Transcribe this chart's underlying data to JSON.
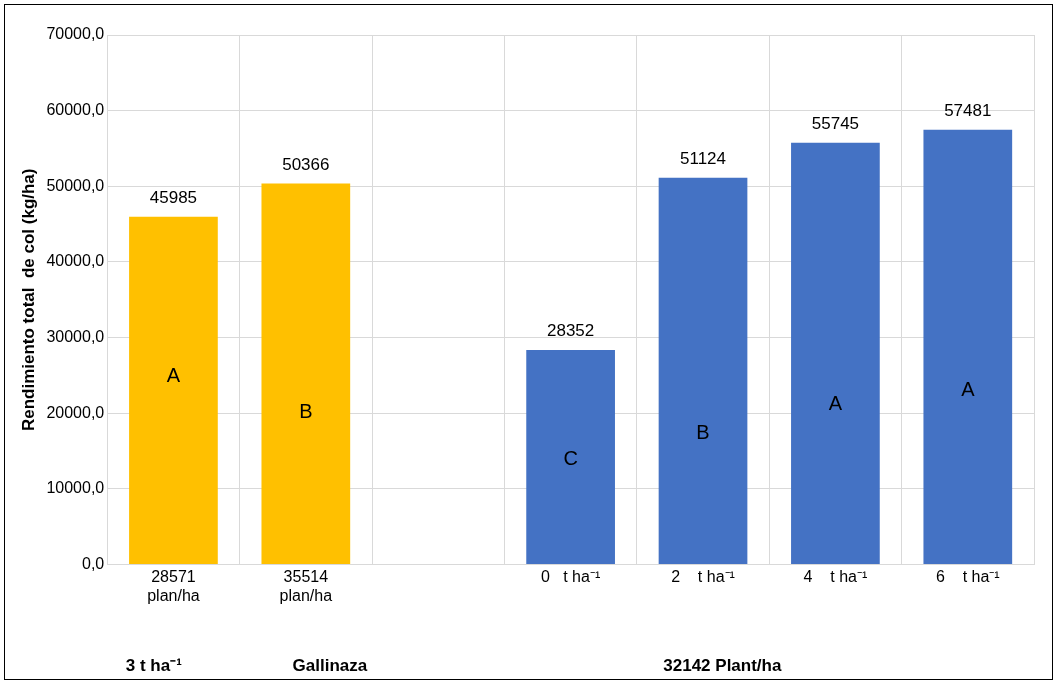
{
  "chart_data": {
    "type": "bar",
    "ylabel": "Rendimiento total  de col (kg/ha)",
    "categories": [
      "28571\nplan/ha",
      "35514\nplan/ha",
      null,
      "0   t ha⁻¹",
      "2    t ha⁻¹",
      "4    t ha⁻¹",
      "6    t ha⁻¹"
    ],
    "values": [
      45985,
      50366,
      null,
      28352,
      51124,
      55745,
      57481
    ],
    "colors": [
      "#ffc000",
      "#ffc000",
      null,
      "#4472c4",
      "#4472c4",
      "#4472c4",
      "#4472c4"
    ],
    "ylim": [
      0,
      70000
    ],
    "yticks": [
      {
        "value": 0,
        "label": "0,0"
      },
      {
        "value": 10000,
        "label": "10000,0"
      },
      {
        "value": 20000,
        "label": "20000,0"
      },
      {
        "value": 30000,
        "label": "30000,0"
      },
      {
        "value": 40000,
        "label": "40000,0"
      },
      {
        "value": 50000,
        "label": "50000,0"
      },
      {
        "value": 60000,
        "label": "60000,0"
      },
      {
        "value": 70000,
        "label": "70000,0"
      }
    ],
    "grid": true,
    "legend": false,
    "data_labels": true,
    "annotations": [
      "A",
      "B",
      "C",
      "B",
      "A",
      "A",
      "3 t ha⁻¹",
      "Gallinaza",
      "32142 Plant/ha"
    ]
  }
}
